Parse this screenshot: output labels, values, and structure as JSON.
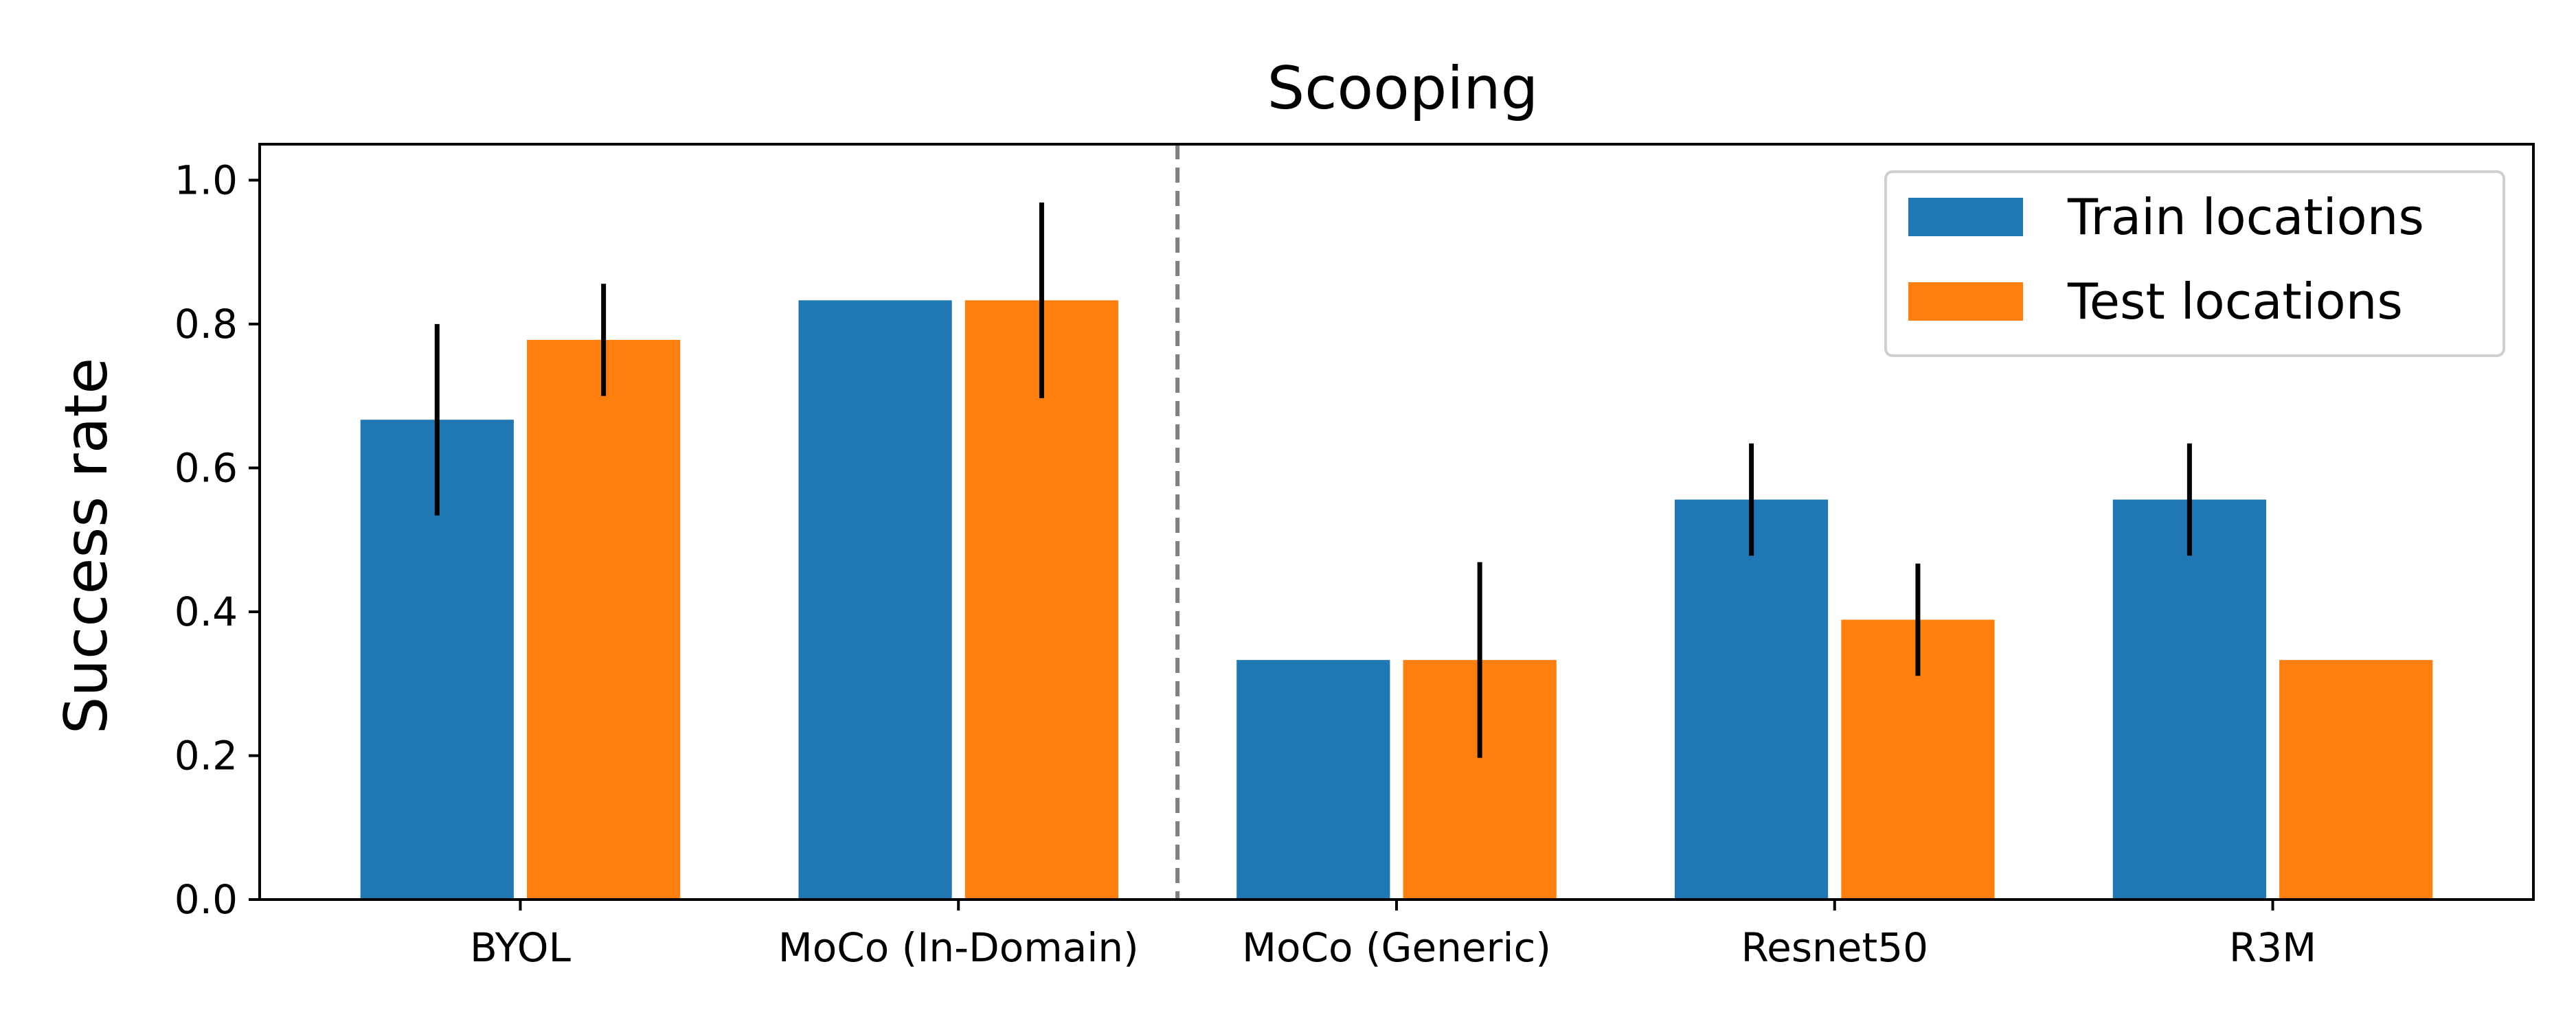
{
  "chart_data": {
    "type": "bar",
    "title": "Scooping",
    "xlabel": "",
    "ylabel": "Success rate",
    "categories": [
      "BYOL",
      "MoCo (In-Domain)",
      "MoCo (Generic)",
      "Resnet50",
      "R3M"
    ],
    "ylim": [
      0,
      1.05
    ],
    "yticks": [
      0.0,
      0.2,
      0.4,
      0.6,
      0.8,
      1.0
    ],
    "ytick_labels": [
      "0.0",
      "0.2",
      "0.4",
      "0.6",
      "0.8",
      "1.0"
    ],
    "grid": false,
    "legend_position": "top-right",
    "separator": {
      "style": "dashed",
      "color": "#808080",
      "between": [
        "MoCo (In-Domain)",
        "MoCo (Generic)"
      ]
    },
    "series": [
      {
        "name": "Train locations",
        "color": "#1f77b4",
        "values": [
          0.667,
          0.833,
          0.333,
          0.556,
          0.556
        ],
        "error": [
          0.133,
          0.0,
          0.0,
          0.078,
          0.078
        ]
      },
      {
        "name": "Test locations",
        "color": "#ff7f0e",
        "values": [
          0.778,
          0.833,
          0.333,
          0.389,
          0.333
        ],
        "error": [
          0.078,
          0.136,
          0.136,
          0.078,
          0.0
        ]
      }
    ]
  }
}
